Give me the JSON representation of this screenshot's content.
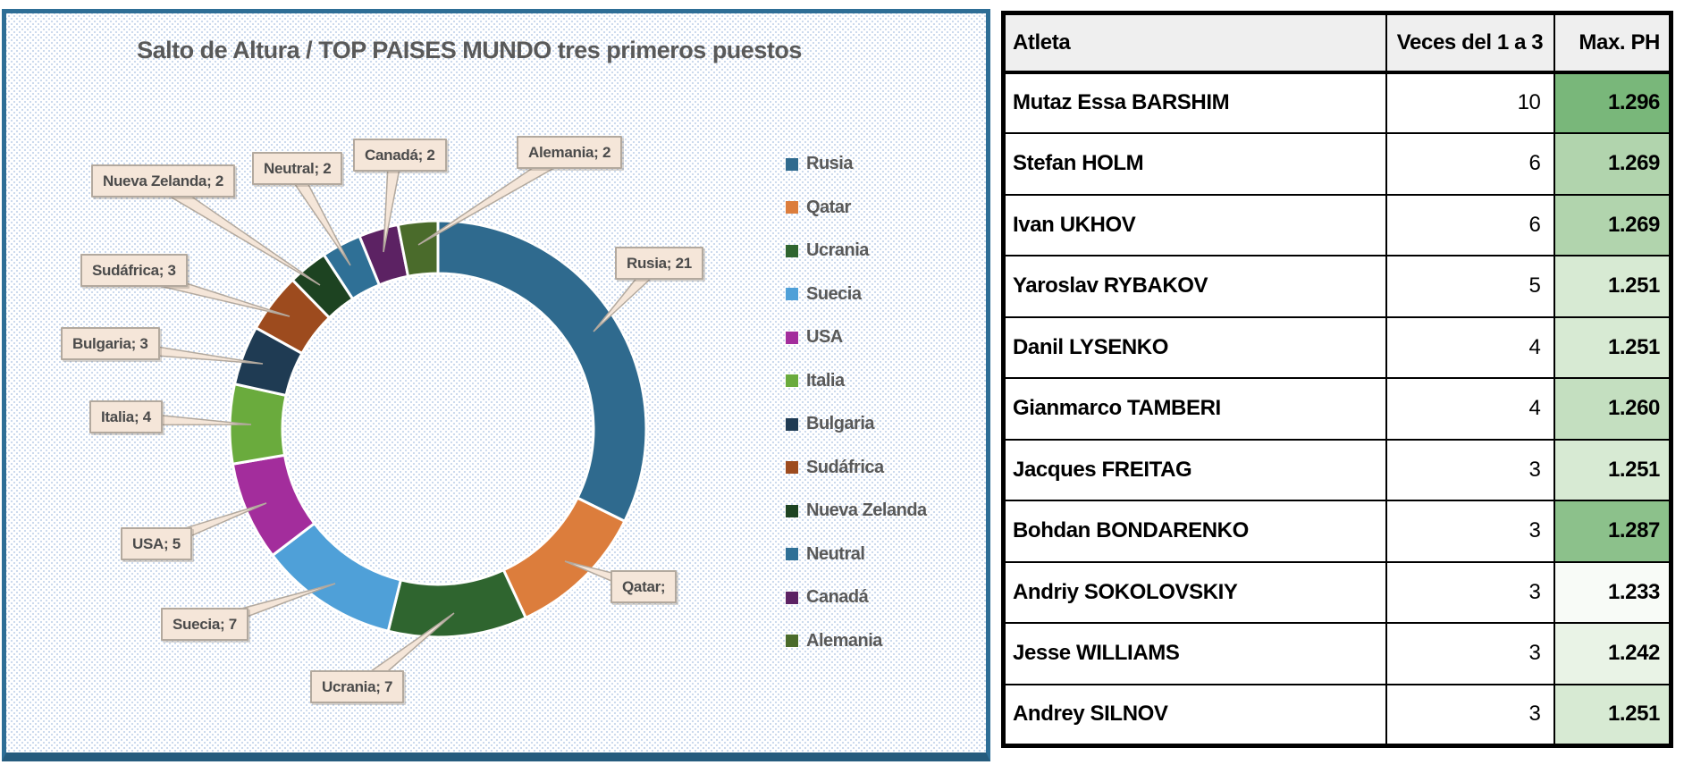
{
  "chart_data": {
    "type": "pie",
    "donut": true,
    "title": "Salto de Altura / TOP PAISES MUNDO tres primeros puestos",
    "categories": [
      "Rusia",
      "Qatar",
      "Ucrania",
      "Suecia",
      "USA",
      "Italia",
      "Bulgaria",
      "Sudáfrica",
      "Nueva Zelanda",
      "Neutral",
      "Canadá",
      "Alemania"
    ],
    "values": [
      21,
      7,
      7,
      7,
      5,
      4,
      3,
      3,
      2,
      2,
      2,
      2
    ],
    "total": 65,
    "colors": [
      "#2F6A8E",
      "#DC7D3C",
      "#2F652F",
      "#4FA0D8",
      "#A32D9C",
      "#6AAB3D",
      "#1F3B53",
      "#9D4B1E",
      "#1D4321",
      "#2F7096",
      "#5C2263",
      "#4A6B2B"
    ],
    "data_labels": [
      "Rusia; 21",
      "Qatar;",
      "Ucrania; 7",
      "Suecia; 7",
      "USA; 5",
      "Italia; 4",
      "Bulgaria; 3",
      "Sudáfrica; 3",
      "Nueva Zelanda; 2",
      "Neutral; 2",
      "Canadá; 2",
      "Alemania; 2"
    ],
    "legend_position": "right",
    "label_box_color": "#F5E6D9",
    "label_border_color": "#B3A99E",
    "panel_border_color": "#2E6E96",
    "slice_gap_color": "#FFFFFF"
  },
  "table": {
    "headers": [
      "Atleta",
      "Veces del 1 a 3",
      "Max. PH"
    ],
    "rows": [
      {
        "atleta": "Mutaz Essa BARSHIM",
        "veces": "10",
        "max_ph": "1.296",
        "ph_color": "#79B77A"
      },
      {
        "atleta": "Stefan HOLM",
        "veces": "6",
        "max_ph": "1.269",
        "ph_color": "#B1D4AD"
      },
      {
        "atleta": "Ivan UKHOV",
        "veces": "6",
        "max_ph": "1.269",
        "ph_color": "#B1D4AD"
      },
      {
        "atleta": "Yaroslav RYBAKOV",
        "veces": "5",
        "max_ph": "1.251",
        "ph_color": "#D7EAD3"
      },
      {
        "atleta": "Danil LYSENKO",
        "veces": "4",
        "max_ph": "1.251",
        "ph_color": "#D7EAD3"
      },
      {
        "atleta": "Gianmarco TAMBERI",
        "veces": "4",
        "max_ph": "1.260",
        "ph_color": "#C4DFC0"
      },
      {
        "atleta": "Jacques FREITAG",
        "veces": "3",
        "max_ph": "1.251",
        "ph_color": "#D7EAD3"
      },
      {
        "atleta": "Bohdan BONDARENKO",
        "veces": "3",
        "max_ph": "1.287",
        "ph_color": "#8CC18B"
      },
      {
        "atleta": "Andriy SOKOLOVSKIY",
        "veces": "3",
        "max_ph": "1.233",
        "ph_color": "#F8FBF7"
      },
      {
        "atleta": "Jesse WILLIAMS",
        "veces": "3",
        "max_ph": "1.242",
        "ph_color": "#E9F3E6"
      },
      {
        "atleta": "Andrey SILNOV",
        "veces": "3",
        "max_ph": "1.251",
        "ph_color": "#D7EAD3"
      }
    ]
  }
}
